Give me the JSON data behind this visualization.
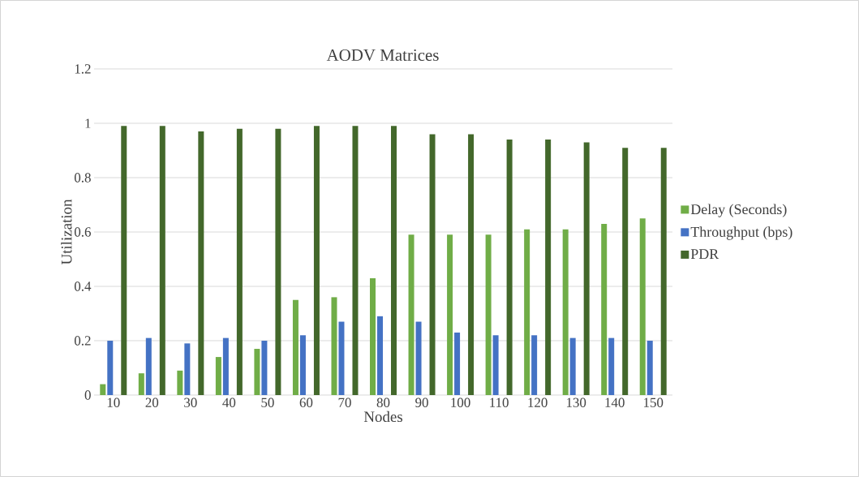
{
  "chart_data": {
    "type": "bar",
    "title": "AODV Matrices",
    "xlabel": "Nodes",
    "ylabel": "Utilization",
    "categories": [
      "10",
      "20",
      "30",
      "40",
      "50",
      "60",
      "70",
      "80",
      "90",
      "100",
      "110",
      "120",
      "130",
      "140",
      "150"
    ],
    "series": [
      {
        "name": "Delay (Seconds)",
        "color": "#70ad47",
        "values": [
          0.04,
          0.08,
          0.09,
          0.14,
          0.17,
          0.35,
          0.36,
          0.43,
          0.59,
          0.59,
          0.59,
          0.61,
          0.61,
          0.63,
          0.65
        ]
      },
      {
        "name": "Throughput (bps)",
        "color": "#4472c4",
        "values": [
          0.2,
          0.21,
          0.19,
          0.21,
          0.2,
          0.22,
          0.27,
          0.29,
          0.27,
          0.23,
          0.22,
          0.22,
          0.21,
          0.21,
          0.2
        ]
      },
      {
        "name": "PDR",
        "color": "#43682b",
        "values": [
          0.99,
          0.99,
          0.97,
          0.98,
          0.98,
          0.99,
          0.99,
          0.99,
          0.96,
          0.96,
          0.94,
          0.94,
          0.93,
          0.91,
          0.91
        ]
      }
    ],
    "ylim": [
      0,
      1.2
    ],
    "yticks": [
      0,
      0.2,
      0.4,
      0.6,
      0.8,
      1,
      1.2
    ],
    "grid": "y",
    "legend": "right"
  }
}
